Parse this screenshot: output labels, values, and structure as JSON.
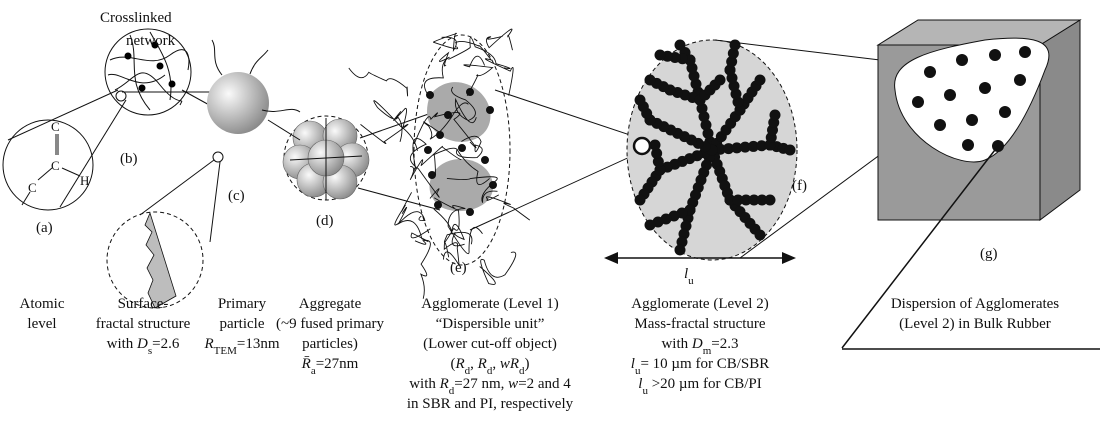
{
  "labels": {
    "crosslinked": [
      "Crosslinked",
      "network"
    ],
    "atoms": [
      "C",
      "C",
      "C",
      "H"
    ],
    "panels": [
      "(a)",
      "(b)",
      "(c)",
      "(d)",
      "(e)",
      "(f)",
      "(g)"
    ],
    "lu": [
      {
        "text": "l",
        "italic": true
      },
      {
        "text": "u",
        "sub": true
      }
    ]
  },
  "captions": [
    {
      "lines": [
        [
          {
            "text": "Atomic"
          }
        ],
        [
          {
            "text": "level"
          }
        ]
      ]
    },
    {
      "lines": [
        [
          {
            "text": "Surface-"
          }
        ],
        [
          {
            "text": "fractal structure"
          }
        ],
        [
          {
            "text": "with "
          },
          {
            "text": "D",
            "italic": true
          },
          {
            "text": "s",
            "sub": true
          },
          {
            "text": "=2.6"
          }
        ]
      ]
    },
    {
      "lines": [
        [
          {
            "text": "Primary"
          }
        ],
        [
          {
            "text": "particle"
          }
        ],
        [
          {
            "text": "R",
            "italic": true
          },
          {
            "text": "TEM",
            "sub": true
          },
          {
            "text": "=13nm"
          }
        ]
      ]
    },
    {
      "lines": [
        [
          {
            "text": "Aggregate"
          }
        ],
        [
          {
            "text": "(~9 fused primary"
          }
        ],
        [
          {
            "text": "particles)"
          }
        ],
        [
          {
            "text": "R̄",
            "italic": true
          },
          {
            "text": "a",
            "sub": true
          },
          {
            "text": "=27nm"
          }
        ]
      ]
    },
    {
      "lines": [
        [
          {
            "text": "Agglomerate (Level 1)"
          }
        ],
        [
          {
            "text": "“Dispersible unit”"
          }
        ],
        [
          {
            "text": "(Lower cut-off object)"
          }
        ],
        [
          {
            "text": "("
          },
          {
            "text": "R",
            "italic": true
          },
          {
            "text": "d",
            "sub": true
          },
          {
            "text": ", "
          },
          {
            "text": "R",
            "italic": true
          },
          {
            "text": "d",
            "sub": true
          },
          {
            "text": ", "
          },
          {
            "text": "wR",
            "italic": true
          },
          {
            "text": "d",
            "sub": true
          },
          {
            "text": ")"
          }
        ],
        [
          {
            "text": "with "
          },
          {
            "text": "R",
            "italic": true
          },
          {
            "text": "d",
            "sub": true
          },
          {
            "text": "=27 nm, "
          },
          {
            "text": "w",
            "italic": true
          },
          {
            "text": "=2 and 4"
          }
        ],
        [
          {
            "text": "in SBR and PI, respectively"
          }
        ]
      ]
    },
    {
      "lines": [
        [
          {
            "text": "Agglomerate (Level 2)"
          }
        ],
        [
          {
            "text": "Mass-fractal structure"
          }
        ],
        [
          {
            "text": "with "
          },
          {
            "text": "D",
            "italic": true
          },
          {
            "text": "m",
            "sub": true
          },
          {
            "text": "=2.3"
          }
        ],
        [
          {
            "text": "l",
            "italic": true
          },
          {
            "text": "u",
            "sub": true
          },
          {
            "text": "= 10 µm for CB/SBR"
          }
        ],
        [
          {
            "text": "l",
            "italic": true
          },
          {
            "text": "u",
            "sub": true
          },
          {
            "text": " >20 µm for CB/PI"
          }
        ]
      ]
    },
    {
      "lines": [
        [
          {
            "text": "Dispersion of Agglomerates"
          }
        ],
        [
          {
            "text": "(Level 2) in Bulk Rubber"
          }
        ]
      ]
    }
  ]
}
